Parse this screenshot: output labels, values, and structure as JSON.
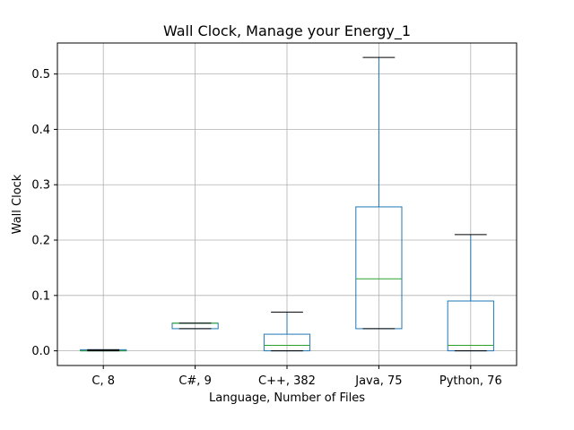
{
  "chart_data": {
    "type": "box",
    "title": "Wall Clock, Manage your Energy_1",
    "xlabel": "Language, Number of Files",
    "ylabel": "Wall Clock",
    "ylim": [
      -0.0265,
      0.556
    ],
    "yticks": [
      0.0,
      0.1,
      0.2,
      0.3,
      0.4,
      0.5
    ],
    "ytick_labels": [
      "0.0",
      "0.1",
      "0.2",
      "0.3",
      "0.4",
      "0.5"
    ],
    "grid": true,
    "categories": [
      "C, 8",
      "C#, 9",
      "C++, 382",
      "Java, 75",
      "Python, 76"
    ],
    "boxes": [
      {
        "whisker_low": 0.0,
        "q1": 0.0,
        "median": 0.0,
        "q3": 0.002,
        "whisker_high": 0.002
      },
      {
        "whisker_low": 0.04,
        "q1": 0.04,
        "median": 0.05,
        "q3": 0.05,
        "whisker_high": 0.05
      },
      {
        "whisker_low": 0.0,
        "q1": 0.0,
        "median": 0.01,
        "q3": 0.03,
        "whisker_high": 0.07
      },
      {
        "whisker_low": 0.04,
        "q1": 0.04,
        "median": 0.13,
        "q3": 0.26,
        "whisker_high": 0.53
      },
      {
        "whisker_low": 0.0,
        "q1": 0.0,
        "median": 0.01,
        "q3": 0.09,
        "whisker_high": 0.21
      }
    ],
    "colors": {
      "box": "#1f77b4",
      "median": "#2ca02c",
      "cap": "#000000",
      "grid": "#b0b0b0"
    }
  }
}
